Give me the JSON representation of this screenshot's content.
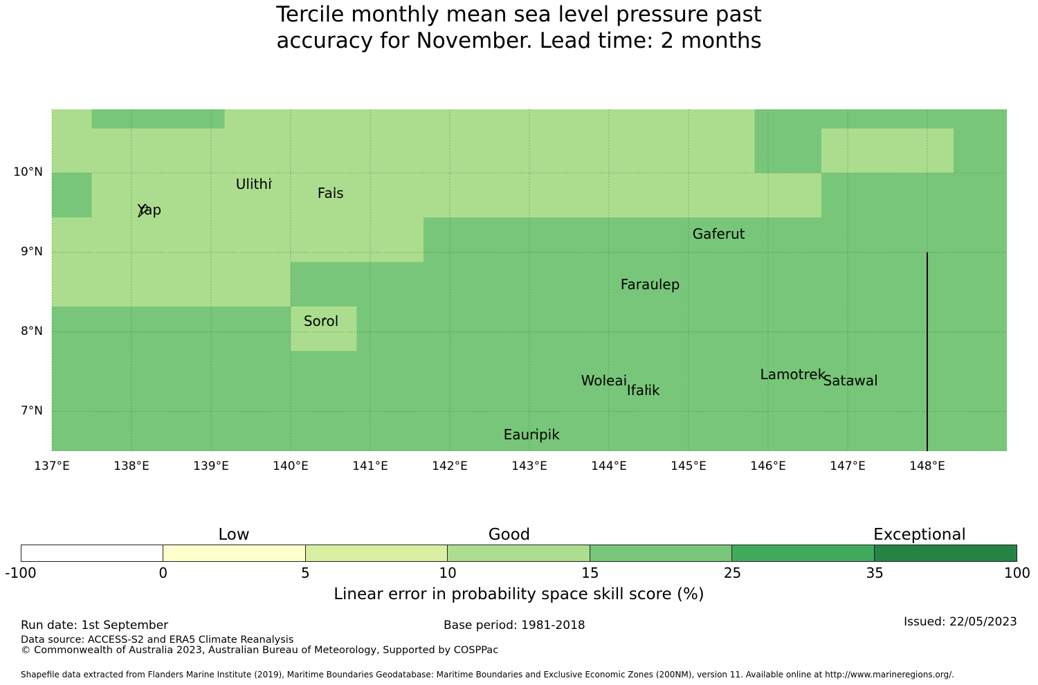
{
  "title_line1": "Tercile monthly mean sea level pressure past",
  "title_line2": "accuracy for November. Lead time: 2 months",
  "colors": {
    "light_green": "#acdd8e",
    "mid_green": "#78c679",
    "grid": "#4a7a4a",
    "boundary": "#000000"
  },
  "map": {
    "lon_range": [
      137,
      149
    ],
    "lat_range": [
      6.5,
      10.8
    ],
    "lat_labels": [
      {
        "lat": 10,
        "text": "10°N"
      },
      {
        "lat": 9,
        "text": "9°N"
      },
      {
        "lat": 8,
        "text": "8°N"
      },
      {
        "lat": 7,
        "text": "7°N"
      }
    ],
    "lon_labels": [
      {
        "lon": 137,
        "text": "137°E"
      },
      {
        "lon": 138,
        "text": "138°E"
      },
      {
        "lon": 139,
        "text": "139°E"
      },
      {
        "lon": 140,
        "text": "140°E"
      },
      {
        "lon": 141,
        "text": "141°E"
      },
      {
        "lon": 142,
        "text": "142°E"
      },
      {
        "lon": 143,
        "text": "143°E"
      },
      {
        "lon": 144,
        "text": "144°E"
      },
      {
        "lon": 145,
        "text": "145°E"
      },
      {
        "lon": 146,
        "text": "146°E"
      },
      {
        "lon": 147,
        "text": "147°E"
      },
      {
        "lon": 148,
        "text": "148°E"
      }
    ],
    "skill_regions": [
      {
        "category": "10-15",
        "lon": [
          137.0,
          149.0
        ],
        "lat": [
          6.5,
          10.8
        ]
      },
      {
        "category": "15-25",
        "lon": [
          137.0,
          149.0
        ],
        "lat": [
          6.5,
          8.32
        ]
      },
      {
        "category": "15-25",
        "lon": [
          140.0,
          149.0
        ],
        "lat": [
          6.5,
          8.88
        ]
      },
      {
        "category": "15-25",
        "lon": [
          141.67,
          149.0
        ],
        "lat": [
          6.5,
          9.44
        ]
      },
      {
        "category": "15-25",
        "lon": [
          146.67,
          149.0
        ],
        "lat": [
          6.5,
          10.0
        ]
      },
      {
        "category": "15-25",
        "lon": [
          145.83,
          149.0
        ],
        "lat": [
          10.0,
          10.8
        ]
      },
      {
        "category": "15-25",
        "lon": [
          137.5,
          139.17
        ],
        "lat": [
          10.56,
          10.8
        ]
      },
      {
        "category": "15-25",
        "lon": [
          137.0,
          137.5
        ],
        "lat": [
          9.44,
          10.0
        ]
      },
      {
        "category": "10-15",
        "lon": [
          140.0,
          140.83
        ],
        "lat": [
          7.76,
          8.32
        ]
      },
      {
        "category": "10-15",
        "lon": [
          146.67,
          148.33
        ],
        "lat": [
          10.0,
          10.56
        ]
      }
    ],
    "places": [
      {
        "name": "Ulithi",
        "lon": 139.72,
        "lat": 9.86
      },
      {
        "name": "Fais",
        "lon": 140.52,
        "lat": 9.76
      },
      {
        "name": "Yap",
        "lon": 138.12,
        "lat": 9.53
      },
      {
        "name": "Gaferut",
        "lon": 145.38,
        "lat": 9.23
      },
      {
        "name": "Faraulep",
        "lon": 144.52,
        "lat": 8.6
      },
      {
        "name": "Sorol",
        "lon": 140.39,
        "lat": 8.14
      },
      {
        "name": "Woleai",
        "lon": 143.91,
        "lat": 7.37
      },
      {
        "name": "Ifalik",
        "lon": 144.45,
        "lat": 7.25
      },
      {
        "name": "Lamotrek",
        "lon": 146.37,
        "lat": 7.47
      },
      {
        "name": "Satawal",
        "lon": 147.03,
        "lat": 7.37
      },
      {
        "name": "Eauripik",
        "lon": 143.04,
        "lat": 6.69
      }
    ],
    "boundary_line": {
      "lon": 148.0,
      "lat": [
        6.5,
        9.0
      ]
    }
  },
  "colorbar": {
    "categories": [
      "Low",
      "Good",
      "Exceptional"
    ],
    "ticks": [
      "-100",
      "0",
      "5",
      "10",
      "15",
      "25",
      "35",
      "100"
    ],
    "colors": [
      "#ffffff",
      "#ffffcc",
      "#d9f0a3",
      "#addd8e",
      "#78c679",
      "#41ab5d",
      "#238443"
    ],
    "label": "Linear error in probability space skill score (%)"
  },
  "footer": {
    "run_date": "Run date: 1st September",
    "base_period": "Base period: 1981-2018",
    "issued": "Issued: 22/05/2023",
    "data_source": "Data source: ACCESS-S2 and ERA5 Climate Reanalysis",
    "copyright": "© Commonwealth of Australia 2023, Australian Bureau of Meteorology, Supported by COSPPac",
    "shapefile": "Shapefile data extracted from Flanders Marine Institute (2019), Maritime Boundaries Geodatabase: Maritime Boundaries and Exclusive Economic Zones (200NM), version 11. Available online at http://www.marineregions.org/."
  }
}
